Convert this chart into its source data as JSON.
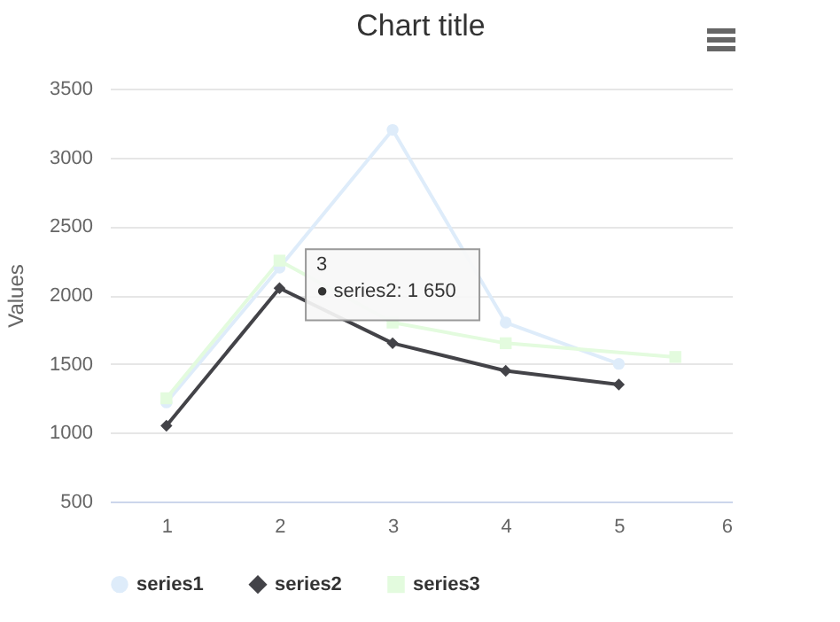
{
  "chart_data": {
    "type": "line",
    "title": "Chart title",
    "ylabel": "Values",
    "x": [
      1,
      2,
      3,
      4,
      5
    ],
    "series": [
      {
        "name": "series1",
        "color": "#deecfa",
        "marker": "circle",
        "values": [
          1220,
          2200,
          3200,
          1800,
          1500
        ]
      },
      {
        "name": "series2",
        "color": "#434348",
        "marker": "diamond",
        "values": [
          1050,
          2050,
          1650,
          1450,
          1350
        ]
      },
      {
        "name": "series3",
        "color": "#e3fbde",
        "marker": "square",
        "x": [
          1,
          2,
          3,
          4,
          5.5
        ],
        "values": [
          1250,
          2250,
          1800,
          1650,
          1550
        ]
      }
    ],
    "xlim": [
      0.5,
      6
    ],
    "xticks": [
      1,
      2,
      3,
      4,
      5,
      6
    ],
    "ylim": [
      500,
      3500
    ],
    "yticks": [
      500,
      1000,
      1500,
      2000,
      2500,
      3000,
      3500
    ],
    "grid": "y",
    "legend": "bottom",
    "annotations": [
      {
        "text": "3\n● series2: 1 650",
        "x": 3,
        "y": 1650
      }
    ]
  }
}
